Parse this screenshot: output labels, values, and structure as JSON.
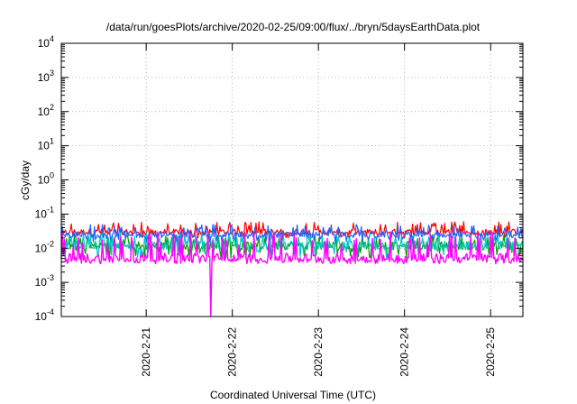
{
  "chart_data": {
    "type": "line",
    "title": "/data/run/goesPlots/archive/2020-02-25/09:00/flux/../bryn/5daysEarthData.plot",
    "xlabel": "Coordinated Universal Time (UTC)",
    "ylabel": "cGy/day",
    "y_scale": "log",
    "ylim": [
      0.0001,
      10000
    ],
    "y_ticks": [
      {
        "mantissa": "10",
        "exp": "-4"
      },
      {
        "mantissa": "10",
        "exp": "-3"
      },
      {
        "mantissa": "10",
        "exp": "-2"
      },
      {
        "mantissa": "10",
        "exp": "-1"
      },
      {
        "mantissa": "10",
        "exp": "0"
      },
      {
        "mantissa": "10",
        "exp": "1"
      },
      {
        "mantissa": "10",
        "exp": "2"
      },
      {
        "mantissa": "10",
        "exp": "3"
      },
      {
        "mantissa": "10",
        "exp": "4"
      }
    ],
    "xlim": [
      "2020-02-20T00:20",
      "2020-02-25T09:00"
    ],
    "x_ticks": [
      "2020-2-21",
      "2020-2-22",
      "2020-2-23",
      "2020-2-24",
      "2020-2-25"
    ],
    "grid": true,
    "legend": "none",
    "series": [
      {
        "color": "#ff0000",
        "typical": 0.03,
        "low": 0.02,
        "high": 0.06
      },
      {
        "color": "#00a000",
        "typical": 0.012,
        "low": 0.005,
        "high": 0.025
      },
      {
        "color": "#00c8c8",
        "typical": 0.012,
        "low": 0.005,
        "high": 0.03
      },
      {
        "color": "#2060ff",
        "typical": 0.025,
        "low": 0.015,
        "high": 0.05
      },
      {
        "color": "#ff00ff",
        "typical": 0.005,
        "low": 0.004,
        "high": 0.03,
        "dropout": {
          "x": "2020-02-21T18:00",
          "min": 0.0001
        }
      }
    ]
  }
}
